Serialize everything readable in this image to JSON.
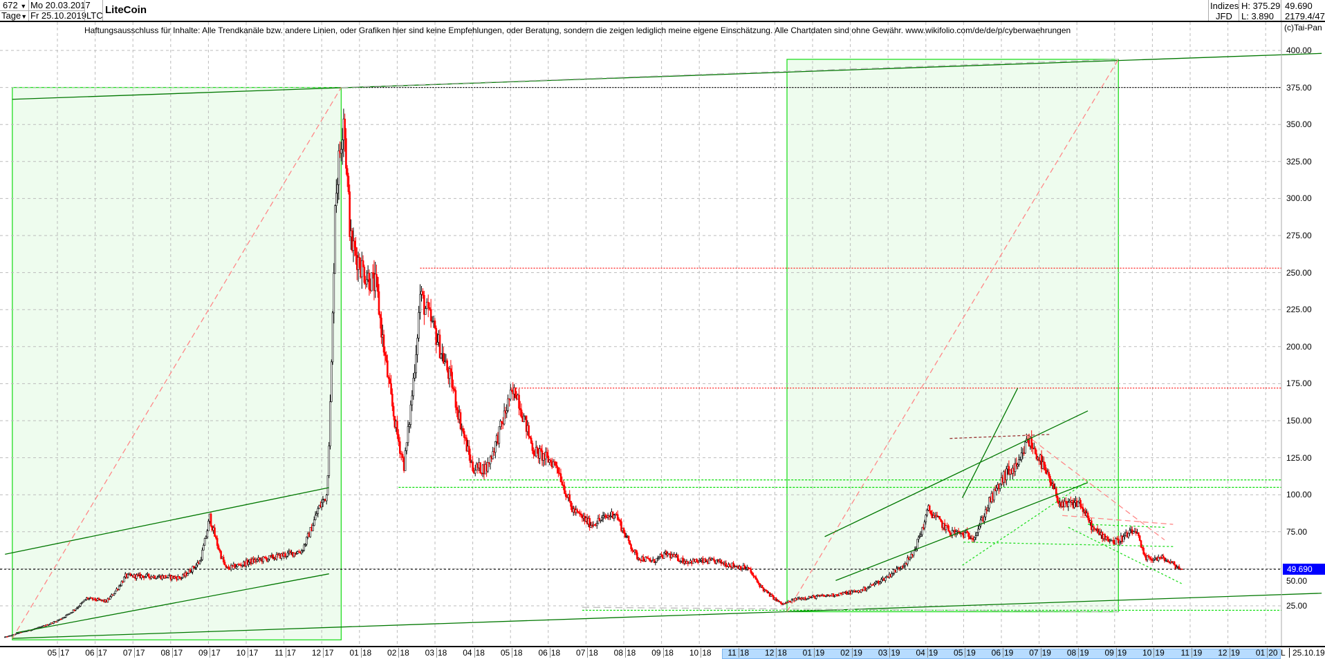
{
  "header": {
    "bars_count": "672",
    "period": "Tage",
    "start_date": "Mo 20.03.2017",
    "end_date": "Fr 25.10.2019",
    "symbol": "LTC",
    "title": "LiteCoin",
    "market": "Indizes",
    "source": "JFD",
    "high": "H: 375.29",
    "low": "L: 3.890",
    "last": "49.690",
    "extra": "2179.4/47"
  },
  "disclaimer": "Haftungsausschluss für Inhalte: Alle Trendkanäle bzw. andere Linien, oder Grafiken hier sind keine Empfehlungen, oder Beratung, sondern die zeigen lediglich meine eigene Einschätzung. Alle Chartdaten sind ohne Gewähr.  www.wikifolio.com/de/de/p/cyberwaehrungen",
  "copyright": "(c)Tai-Pan",
  "footer": {
    "l_marker": "L",
    "last_date": "25.10.19"
  },
  "colors": {
    "up": "#000000",
    "down": "#ff0000",
    "box_fill": "#eefcee",
    "box_border": "#22dd22",
    "trend": "#007700",
    "price_tag": "#0000ff"
  },
  "chart_data": {
    "type": "candlestick",
    "title": "LiteCoin",
    "ylim": [
      0,
      400
    ],
    "y_ticks": [
      "25.00",
      "50.00",
      "75.00",
      "100.00",
      "125.00",
      "150.00",
      "175.00",
      "200.00",
      "225.00",
      "250.00",
      "275.00",
      "300.00",
      "325.00",
      "350.00",
      "375.00",
      "400.00"
    ],
    "current_price": 49.69,
    "current_price_label": "49.690",
    "x_range": [
      "2017-03-20",
      "2019-10-25"
    ],
    "month_labels": [
      {
        "m": "05",
        "y": "17",
        "date": "2017-05-01"
      },
      {
        "m": "06",
        "y": "17",
        "date": "2017-06-01"
      },
      {
        "m": "07",
        "y": "17",
        "date": "2017-07-01"
      },
      {
        "m": "08",
        "y": "17",
        "date": "2017-08-01"
      },
      {
        "m": "09",
        "y": "17",
        "date": "2017-09-01"
      },
      {
        "m": "10",
        "y": "17",
        "date": "2017-10-01"
      },
      {
        "m": "11",
        "y": "17",
        "date": "2017-11-01"
      },
      {
        "m": "12",
        "y": "17",
        "date": "2017-12-01"
      },
      {
        "m": "01",
        "y": "18",
        "date": "2018-01-01"
      },
      {
        "m": "02",
        "y": "18",
        "date": "2018-02-01"
      },
      {
        "m": "03",
        "y": "18",
        "date": "2018-03-01"
      },
      {
        "m": "04",
        "y": "18",
        "date": "2018-04-01"
      },
      {
        "m": "05",
        "y": "18",
        "date": "2018-05-01"
      },
      {
        "m": "06",
        "y": "18",
        "date": "2018-06-01"
      },
      {
        "m": "07",
        "y": "18",
        "date": "2018-07-01"
      },
      {
        "m": "08",
        "y": "18",
        "date": "2018-08-01"
      },
      {
        "m": "09",
        "y": "18",
        "date": "2018-09-01"
      },
      {
        "m": "10",
        "y": "18",
        "date": "2018-10-01"
      },
      {
        "m": "11",
        "y": "18",
        "date": "2018-11-01"
      },
      {
        "m": "12",
        "y": "18",
        "date": "2018-12-01"
      },
      {
        "m": "01",
        "y": "19",
        "date": "2019-01-01"
      },
      {
        "m": "02",
        "y": "19",
        "date": "2019-02-01"
      },
      {
        "m": "03",
        "y": "19",
        "date": "2019-03-01"
      },
      {
        "m": "04",
        "y": "19",
        "date": "2019-04-01"
      },
      {
        "m": "05",
        "y": "19",
        "date": "2019-05-01"
      },
      {
        "m": "06",
        "y": "19",
        "date": "2019-06-01"
      },
      {
        "m": "07",
        "y": "19",
        "date": "2019-07-01"
      },
      {
        "m": "08",
        "y": "19",
        "date": "2019-08-01"
      },
      {
        "m": "09",
        "y": "19",
        "date": "2019-09-01"
      },
      {
        "m": "10",
        "y": "19",
        "date": "2019-10-01"
      },
      {
        "m": "11",
        "y": "19",
        "date": "2019-11-01"
      },
      {
        "m": "12",
        "y": "19",
        "date": "2019-12-01"
      },
      {
        "m": "01",
        "y": "20",
        "date": "2020-01-01"
      }
    ],
    "price_path": [
      [
        "2017-03-20",
        4
      ],
      [
        "2017-04-01",
        7
      ],
      [
        "2017-05-01",
        15
      ],
      [
        "2017-05-25",
        30
      ],
      [
        "2017-06-10",
        28
      ],
      [
        "2017-06-25",
        45
      ],
      [
        "2017-07-15",
        45
      ],
      [
        "2017-08-10",
        44
      ],
      [
        "2017-08-25",
        55
      ],
      [
        "2017-09-02",
        85
      ],
      [
        "2017-09-15",
        50
      ],
      [
        "2017-10-05",
        55
      ],
      [
        "2017-10-25",
        58
      ],
      [
        "2017-11-15",
        62
      ],
      [
        "2017-11-28",
        90
      ],
      [
        "2017-12-05",
        100
      ],
      [
        "2017-12-12",
        300
      ],
      [
        "2017-12-19",
        360
      ],
      [
        "2017-12-25",
        270
      ],
      [
        "2018-01-05",
        250
      ],
      [
        "2018-01-15",
        240
      ],
      [
        "2018-02-06",
        120
      ],
      [
        "2018-02-18",
        235
      ],
      [
        "2018-03-01",
        210
      ],
      [
        "2018-03-15",
        175
      ],
      [
        "2018-04-01",
        118
      ],
      [
        "2018-04-12",
        118
      ],
      [
        "2018-04-30",
        165
      ],
      [
        "2018-05-06",
        170
      ],
      [
        "2018-05-20",
        130
      ],
      [
        "2018-06-08",
        120
      ],
      [
        "2018-06-20",
        90
      ],
      [
        "2018-07-05",
        80
      ],
      [
        "2018-07-25",
        88
      ],
      [
        "2018-08-12",
        58
      ],
      [
        "2018-08-25",
        55
      ],
      [
        "2018-09-05",
        60
      ],
      [
        "2018-09-20",
        55
      ],
      [
        "2018-10-15",
        55
      ],
      [
        "2018-11-10",
        50
      ],
      [
        "2018-11-22",
        36
      ],
      [
        "2018-12-07",
        26
      ],
      [
        "2018-12-20",
        30
      ],
      [
        "2019-01-15",
        32
      ],
      [
        "2019-02-08",
        35
      ],
      [
        "2019-03-01",
        45
      ],
      [
        "2019-03-20",
        58
      ],
      [
        "2019-04-03",
        90
      ],
      [
        "2019-04-20",
        75
      ],
      [
        "2019-05-10",
        72
      ],
      [
        "2019-05-22",
        95
      ],
      [
        "2019-06-05",
        115
      ],
      [
        "2019-06-14",
        118
      ],
      [
        "2019-06-22",
        138
      ],
      [
        "2019-07-01",
        125
      ],
      [
        "2019-07-12",
        105
      ],
      [
        "2019-07-20",
        92
      ],
      [
        "2019-08-03",
        95
      ],
      [
        "2019-08-15",
        76
      ],
      [
        "2019-09-01",
        68
      ],
      [
        "2019-09-18",
        76
      ],
      [
        "2019-09-25",
        57
      ],
      [
        "2019-10-10",
        57
      ],
      [
        "2019-10-25",
        49.69
      ]
    ],
    "boxes": [
      {
        "from": "2017-03-26",
        "to": "2017-12-17",
        "top": 375,
        "bottom": 2
      },
      {
        "from": "2018-12-11",
        "to": "2019-09-04",
        "top": 394,
        "bottom": 21
      }
    ],
    "horizontal_levels": [
      {
        "price": 375,
        "from": "2017-12-17",
        "style": "black-dotted"
      },
      {
        "price": 253,
        "from": "2018-02-18",
        "style": "red-dotted"
      },
      {
        "price": 172,
        "from": "2018-05-01",
        "style": "red-dotted"
      },
      {
        "price": 110,
        "from": "2018-03-21",
        "style": "green-dotted"
      },
      {
        "price": 105,
        "from": "2018-02-02",
        "style": "green-dotted"
      },
      {
        "price": 22,
        "from": "2018-06-28",
        "style": "green-dotted"
      }
    ],
    "trendlines": [
      {
        "from": [
          "2017-03-26",
          367
        ],
        "to": [
          "2020-02-15",
          398
        ],
        "style": "trend"
      },
      {
        "from": [
          "2017-03-26",
          3
        ],
        "to": [
          "2020-02-15",
          33.5
        ],
        "style": "trend"
      },
      {
        "from": [
          "2017-03-20",
          59.8
        ],
        "to": [
          "2017-12-07",
          104.8
        ],
        "style": "trend"
      },
      {
        "from": [
          "2017-03-29",
          6.8
        ],
        "to": [
          "2017-12-07",
          46.6
        ],
        "style": "trend"
      },
      {
        "from": [
          "2017-03-26",
          3
        ],
        "to": [
          "2017-12-17",
          375
        ],
        "style": "red-dashed"
      },
      {
        "from": [
          "2018-12-11",
          21
        ],
        "to": [
          "2019-09-04",
          394
        ],
        "style": "red-dashed"
      },
      {
        "from": [
          "2017-12-17",
          375
        ],
        "to": [
          "2019-09-04",
          394
        ],
        "style": "gray-dashed"
      },
      {
        "from": [
          "2018-06-28",
          24
        ],
        "to": [
          "2019-09-04",
          21
        ],
        "style": "gray-dashed"
      },
      {
        "from": [
          "2019-01-11",
          71.7
        ],
        "to": [
          "2019-08-10",
          156.6
        ],
        "style": "trend"
      },
      {
        "from": [
          "2019-01-20",
          42.1
        ],
        "to": [
          "2019-08-10",
          108.2
        ],
        "style": "trend"
      },
      {
        "from": [
          "2019-04-30",
          97.9
        ],
        "to": [
          "2019-06-14",
          172
        ],
        "style": "trend"
      },
      {
        "from": [
          "2019-04-30",
          52.4
        ],
        "to": [
          "2019-08-10",
          109.3
        ],
        "style": "green-dashed"
      },
      {
        "from": [
          "2019-04-20",
          138
        ],
        "to": [
          "2019-07-10",
          140.7
        ],
        "style": "darkred-dashed"
      },
      {
        "from": [
          "2019-06-20",
          140.7
        ],
        "to": [
          "2019-10-11",
          69.5
        ],
        "style": "red-dashed"
      },
      {
        "from": [
          "2019-07-20",
          86
        ],
        "to": [
          "2019-10-18",
          80
        ],
        "style": "red-dashed"
      },
      {
        "from": [
          "2019-07-25",
          78
        ],
        "to": [
          "2019-10-25",
          40
        ],
        "style": "green-dashed"
      },
      {
        "from": [
          "2019-08-10",
          80
        ],
        "to": [
          "2019-10-11",
          78
        ],
        "style": "green-dashed"
      },
      {
        "from": [
          "2019-05-01",
          68
        ],
        "to": [
          "2019-10-18",
          65
        ],
        "style": "green-dashed"
      }
    ]
  }
}
